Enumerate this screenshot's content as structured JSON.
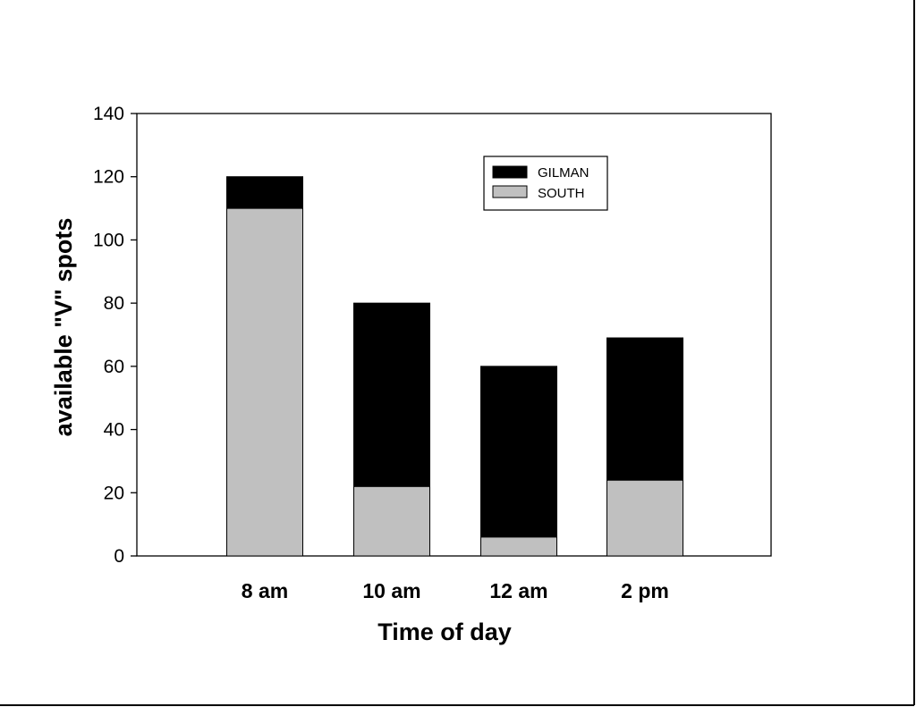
{
  "chart_data": {
    "type": "bar",
    "stacked": true,
    "title": "",
    "xlabel": "Time of day",
    "ylabel": "available \"V\" spots",
    "categories": [
      "8 am",
      "10 am",
      "12 am",
      "2 pm"
    ],
    "series": [
      {
        "name": "SOUTH",
        "values": [
          110,
          22,
          6,
          24
        ],
        "color": "#c0c0c0"
      },
      {
        "name": "GILMAN",
        "values": [
          10,
          58,
          54,
          45
        ],
        "color": "#000000"
      }
    ],
    "ylim": [
      0,
      140
    ],
    "yticks": [
      0,
      20,
      40,
      60,
      80,
      100,
      120,
      140
    ],
    "grid": false,
    "legend": {
      "position": "top-right",
      "entries": [
        {
          "name": "GILMAN",
          "color": "#000000"
        },
        {
          "name": "SOUTH",
          "color": "#c0c0c0"
        }
      ]
    }
  }
}
